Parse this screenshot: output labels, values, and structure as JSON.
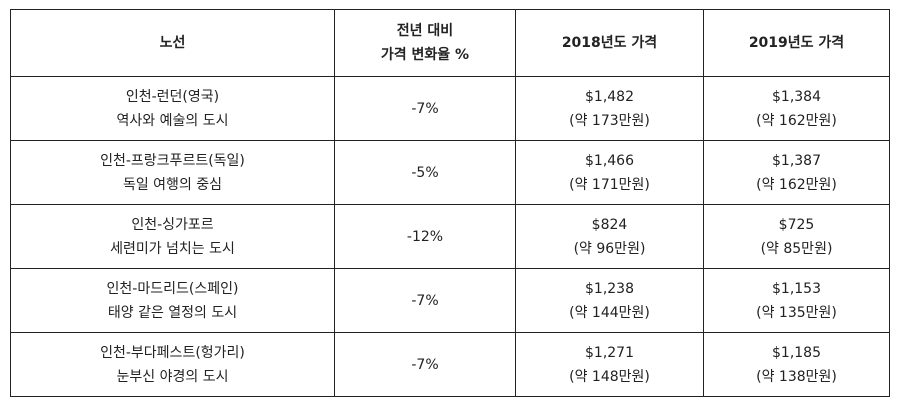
{
  "headers": {
    "route": "노선",
    "change_line1": "전년 대비",
    "change_line2": "가격 변화율 %",
    "price_2018": "2018년도 가격",
    "price_2019": "2019년도 가격"
  },
  "rows": [
    {
      "route": "인천-런던(영국)",
      "desc": "역사와 예술의 도시",
      "change": "-7%",
      "p2018_usd": "$1,482",
      "p2018_krw": "(약 173만원)",
      "p2019_usd": "$1,384",
      "p2019_krw": "(약 162만원)"
    },
    {
      "route": "인천-프랑크푸르트(독일)",
      "desc": "독일 여행의 중심",
      "change": "-5%",
      "p2018_usd": "$1,466",
      "p2018_krw": "(약 171만원)",
      "p2019_usd": "$1,387",
      "p2019_krw": "(약 162만원)"
    },
    {
      "route": "인천-싱가포르",
      "desc": "세련미가 넘치는 도시",
      "change": "-12%",
      "p2018_usd": "$824",
      "p2018_krw": "(약 96만원)",
      "p2019_usd": "$725",
      "p2019_krw": "(약 85만원)"
    },
    {
      "route": "인천-마드리드(스페인)",
      "desc": "태양 같은 열정의 도시",
      "change": "-7%",
      "p2018_usd": "$1,238",
      "p2018_krw": "(약 144만원)",
      "p2019_usd": "$1,153",
      "p2019_krw": "(약 135만원)"
    },
    {
      "route": "인천-부다페스트(헝가리)",
      "desc": "눈부신 야경의 도시",
      "change": "-7%",
      "p2018_usd": "$1,271",
      "p2018_krw": "(약 148만원)",
      "p2019_usd": "$1,185",
      "p2019_krw": "(약 138만원)"
    }
  ]
}
